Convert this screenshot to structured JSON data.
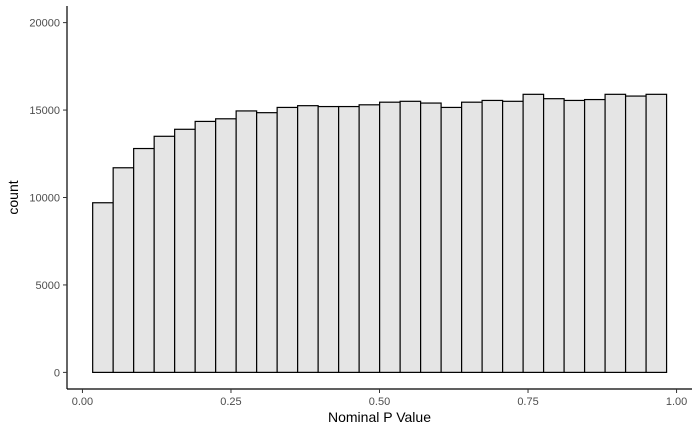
{
  "chart_data": {
    "type": "bar",
    "subtype": "histogram",
    "title": "",
    "xlabel": "Nominal P Value",
    "ylabel": "count",
    "xlim": [
      -0.026,
      1.026
    ],
    "ylim": [
      -950,
      20950
    ],
    "x_ticks": [
      0.0,
      0.25,
      0.5,
      0.75,
      1.0
    ],
    "x_tick_labels": [
      "0.00",
      "0.25",
      "0.50",
      "0.75",
      "1.00"
    ],
    "y_ticks": [
      0,
      5000,
      10000,
      15000,
      20000
    ],
    "y_tick_labels": [
      "0",
      "5000",
      "10000",
      "15000",
      "20000"
    ],
    "bin_start": 0.0172,
    "bin_width": 0.0345,
    "values": [
      9700,
      11700,
      12800,
      13500,
      13900,
      14350,
      14500,
      14950,
      14850,
      15150,
      15250,
      15200,
      15200,
      15300,
      15450,
      15500,
      15400,
      15150,
      15450,
      15550,
      15500,
      15900,
      15650,
      15550,
      15600,
      15900,
      15800,
      15900
    ],
    "bar_fill": "#e5e5e5",
    "bar_stroke": "#000000",
    "grid": false,
    "legend": "none"
  }
}
